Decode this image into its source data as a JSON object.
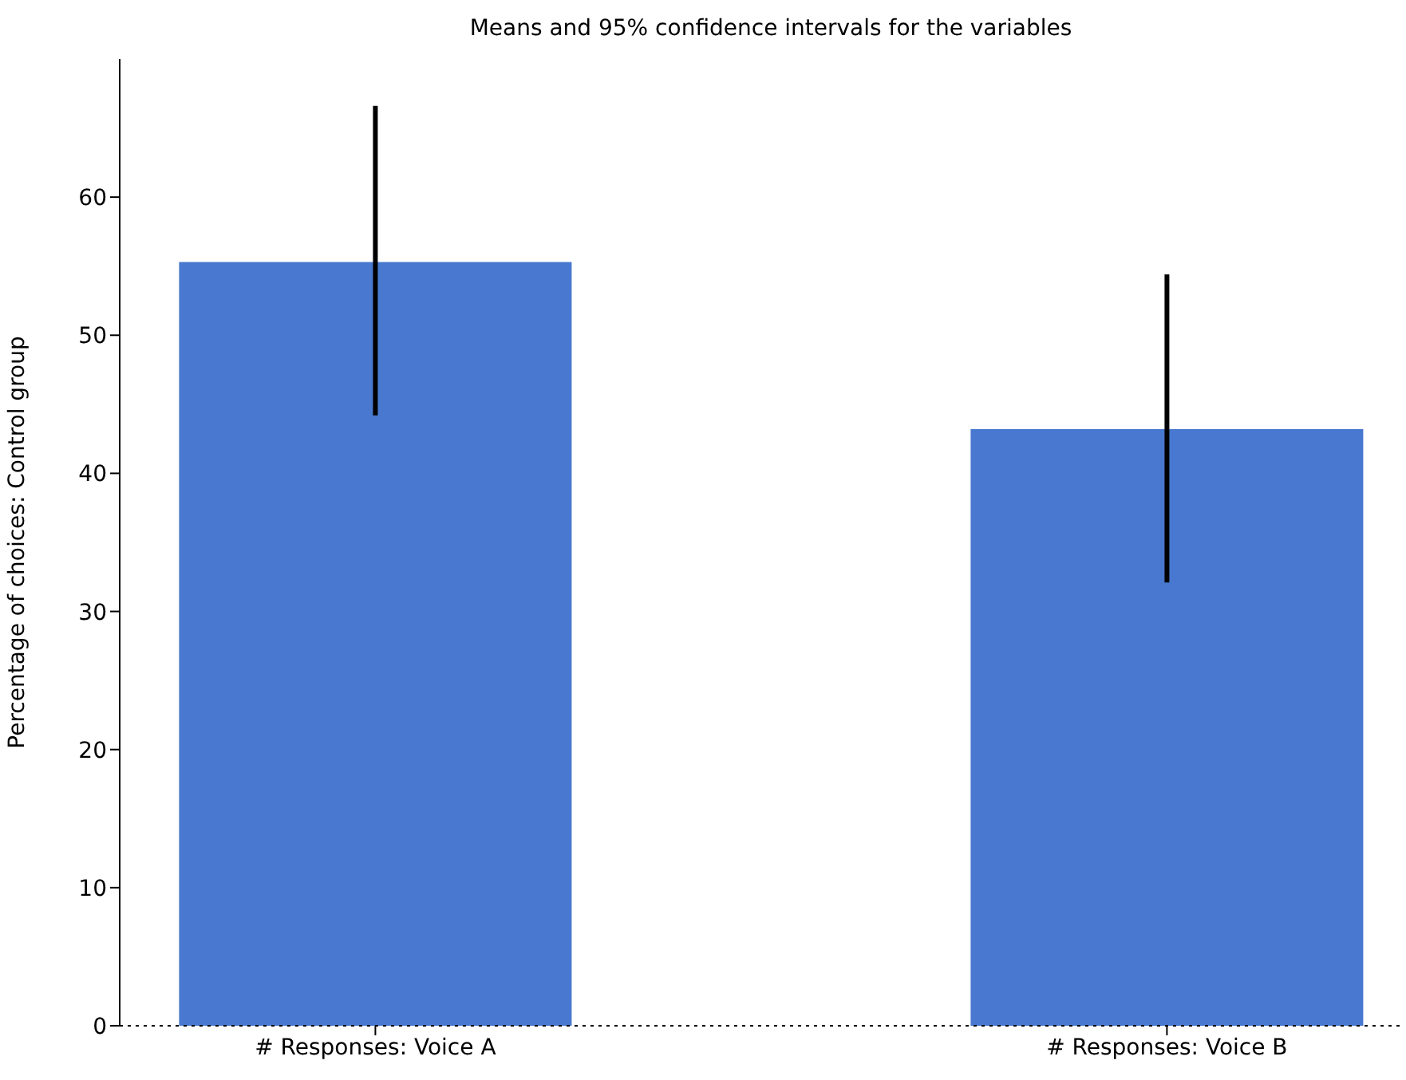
{
  "chart_data": {
    "type": "bar",
    "title": "Means and 95% confidence intervals for the variables",
    "ylabel": "Percentage of choices: Control group",
    "categories": [
      "# Responses: Voice A",
      "# Responses: Voice B"
    ],
    "values": [
      55.3,
      43.2
    ],
    "color": "#4878cf",
    "errors": [
      [
        44.2,
        66.6
      ],
      [
        32.1,
        54.4
      ]
    ],
    "ylim": [
      0,
      70
    ],
    "yticks": [
      0,
      10,
      20,
      30,
      40,
      50,
      60
    ],
    "grid": false,
    "ref_lines": [
      {
        "axis": "y",
        "value": 0,
        "line_style": "dotted",
        "color": "#000000"
      }
    ]
  }
}
